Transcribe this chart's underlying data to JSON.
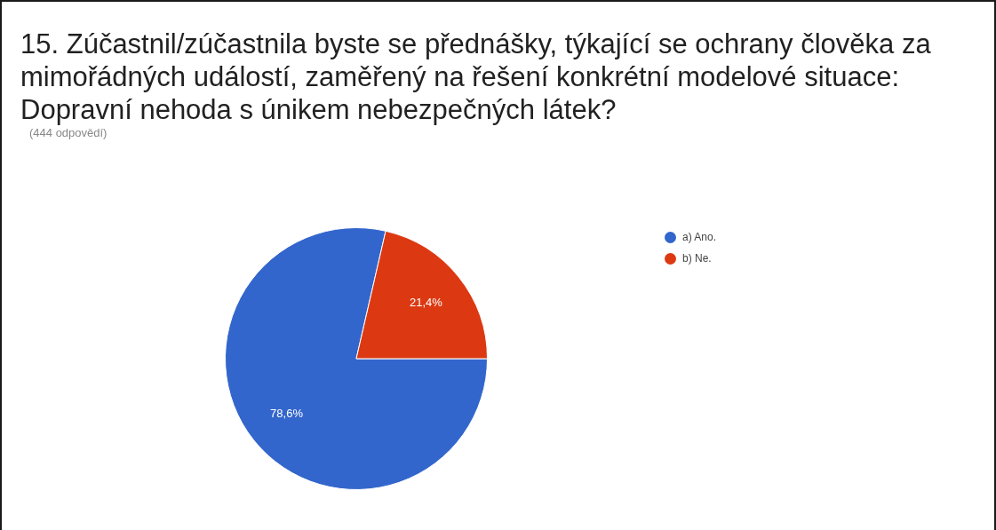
{
  "chart_data": {
    "type": "pie",
    "title": "15. Zúčastnil/zúčastnila byste se přednášky, týkající se ochrany člověka za mimořádných událostí, zaměřený na řešení konkrétní modelové situace: Dopravní nehoda s únikem nebezpečných látek?",
    "subtitle": "(444 odpovědí)",
    "categories": [
      "a) Ano.",
      "b) Ne."
    ],
    "values": [
      78.6,
      21.4
    ],
    "colors": [
      "#3366cc",
      "#dc3912"
    ],
    "value_labels": [
      "78,6%",
      "21,4%"
    ],
    "legend": "right"
  }
}
